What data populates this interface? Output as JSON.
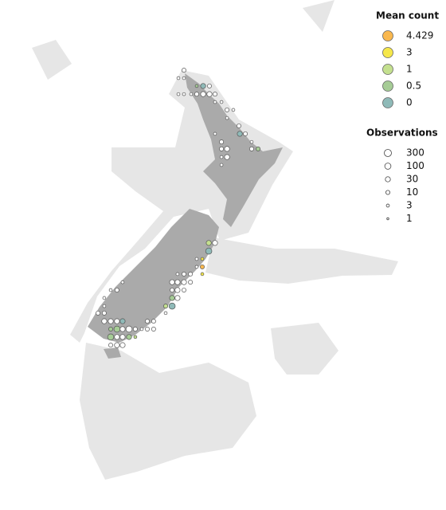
{
  "legend": {
    "mean_title": "Mean count",
    "mean_items": [
      {
        "value": 4.429,
        "color": "#f9b84f"
      },
      {
        "value": 3,
        "color": "#f5e74a"
      },
      {
        "value": 1,
        "color": "#c4e08f"
      },
      {
        "value": 0.5,
        "color": "#a6cc96"
      },
      {
        "value": 0,
        "color": "#8fbab8"
      }
    ],
    "obs_title": "Observations",
    "obs_items": [
      300,
      100,
      30,
      10,
      3,
      1
    ]
  },
  "points": [
    {
      "lon": 172.7,
      "lat": -34.51,
      "mean": null,
      "obs": 10
    },
    {
      "lon": 172.38,
      "lat": -34.86,
      "mean": null,
      "obs": 3
    },
    {
      "lon": 172.7,
      "lat": -34.86,
      "mean": null,
      "obs": 3
    },
    {
      "lon": 173.43,
      "lat": -35.21,
      "mean": 0.5,
      "obs": 3
    },
    {
      "lon": 173.8,
      "lat": -35.21,
      "mean": 0,
      "obs": 30
    },
    {
      "lon": 174.16,
      "lat": -35.21,
      "mean": null,
      "obs": 10
    },
    {
      "lon": 172.38,
      "lat": -35.57,
      "mean": null,
      "obs": 3
    },
    {
      "lon": 172.7,
      "lat": -35.57,
      "mean": null,
      "obs": 3
    },
    {
      "lon": 173.11,
      "lat": -35.57,
      "mean": null,
      "obs": 3
    },
    {
      "lon": 173.43,
      "lat": -35.57,
      "mean": null,
      "obs": 10
    },
    {
      "lon": 173.8,
      "lat": -35.57,
      "mean": null,
      "obs": 30
    },
    {
      "lon": 174.16,
      "lat": -35.57,
      "mean": null,
      "obs": 30
    },
    {
      "lon": 174.48,
      "lat": -35.57,
      "mean": null,
      "obs": 10
    },
    {
      "lon": 174.48,
      "lat": -35.92,
      "mean": null,
      "obs": 3
    },
    {
      "lon": 174.85,
      "lat": -35.92,
      "mean": null,
      "obs": 3
    },
    {
      "lon": 175.17,
      "lat": -36.27,
      "mean": null,
      "obs": 10
    },
    {
      "lon": 175.53,
      "lat": -36.27,
      "mean": null,
      "obs": 3
    },
    {
      "lon": 175.17,
      "lat": -36.63,
      "mean": null,
      "obs": 3
    },
    {
      "lon": 175.85,
      "lat": -36.98,
      "mean": null,
      "obs": 10
    },
    {
      "lon": 174.48,
      "lat": -37.33,
      "mean": null,
      "obs": 3
    },
    {
      "lon": 175.9,
      "lat": -37.33,
      "mean": 0,
      "obs": 30
    },
    {
      "lon": 176.22,
      "lat": -37.33,
      "mean": null,
      "obs": 10
    },
    {
      "lon": 176.58,
      "lat": -37.69,
      "mean": null,
      "obs": 3
    },
    {
      "lon": 174.85,
      "lat": -37.69,
      "mean": null,
      "obs": 10
    },
    {
      "lon": 176.58,
      "lat": -38.0,
      "mean": null,
      "obs": 10
    },
    {
      "lon": 176.95,
      "lat": -38.0,
      "mean": 0.5,
      "obs": 10
    },
    {
      "lon": 174.85,
      "lat": -38.0,
      "mean": null,
      "obs": 10
    },
    {
      "lon": 175.17,
      "lat": -38.0,
      "mean": null,
      "obs": 30
    },
    {
      "lon": 174.85,
      "lat": -38.36,
      "mean": null,
      "obs": 3
    },
    {
      "lon": 175.17,
      "lat": -38.36,
      "mean": null,
      "obs": 30
    },
    {
      "lon": 174.85,
      "lat": -38.71,
      "mean": null,
      "obs": 3
    },
    {
      "lon": 174.12,
      "lat": -42.17,
      "mean": 1,
      "obs": 30
    },
    {
      "lon": 174.48,
      "lat": -42.17,
      "mean": null,
      "obs": 30
    },
    {
      "lon": 174.12,
      "lat": -42.53,
      "mean": 0,
      "obs": 100
    },
    {
      "lon": 173.75,
      "lat": -42.88,
      "mean": 3,
      "obs": 3
    },
    {
      "lon": 173.43,
      "lat": -42.88,
      "mean": null,
      "obs": 3
    },
    {
      "lon": 173.75,
      "lat": -43.23,
      "mean": 4.429,
      "obs": 10
    },
    {
      "lon": 173.43,
      "lat": -43.23,
      "mean": null,
      "obs": 3
    },
    {
      "lon": 172.33,
      "lat": -43.55,
      "mean": null,
      "obs": 3
    },
    {
      "lon": 172.7,
      "lat": -43.55,
      "mean": null,
      "obs": 10
    },
    {
      "lon": 173.07,
      "lat": -43.55,
      "mean": null,
      "obs": 10
    },
    {
      "lon": 173.75,
      "lat": -43.55,
      "mean": 3,
      "obs": 3
    },
    {
      "lon": 169.18,
      "lat": -43.91,
      "mean": null,
      "obs": 3
    },
    {
      "lon": 172.02,
      "lat": -43.91,
      "mean": null,
      "obs": 30
    },
    {
      "lon": 172.33,
      "lat": -43.91,
      "mean": null,
      "obs": 30
    },
    {
      "lon": 172.7,
      "lat": -43.91,
      "mean": null,
      "obs": 30
    },
    {
      "lon": 173.07,
      "lat": -43.91,
      "mean": null,
      "obs": 10
    },
    {
      "lon": 168.5,
      "lat": -44.26,
      "mean": null,
      "obs": 3
    },
    {
      "lon": 168.86,
      "lat": -44.26,
      "mean": null,
      "obs": 10
    },
    {
      "lon": 172.02,
      "lat": -44.26,
      "mean": null,
      "obs": 10
    },
    {
      "lon": 172.33,
      "lat": -44.26,
      "mean": null,
      "obs": 30
    },
    {
      "lon": 172.7,
      "lat": -44.26,
      "mean": null,
      "obs": 10
    },
    {
      "lon": 168.13,
      "lat": -44.61,
      "mean": null,
      "obs": 3
    },
    {
      "lon": 172.02,
      "lat": -44.61,
      "mean": 0.5,
      "obs": 30
    },
    {
      "lon": 172.33,
      "lat": -44.61,
      "mean": null,
      "obs": 30
    },
    {
      "lon": 168.13,
      "lat": -44.97,
      "mean": null,
      "obs": 3
    },
    {
      "lon": 171.65,
      "lat": -44.97,
      "mean": 1,
      "obs": 10
    },
    {
      "lon": 172.02,
      "lat": -44.97,
      "mean": 0,
      "obs": 100
    },
    {
      "lon": 167.77,
      "lat": -45.28,
      "mean": null,
      "obs": 10
    },
    {
      "lon": 168.13,
      "lat": -45.28,
      "mean": null,
      "obs": 10
    },
    {
      "lon": 171.65,
      "lat": -45.28,
      "mean": null,
      "obs": 3
    },
    {
      "lon": 168.13,
      "lat": -45.64,
      "mean": null,
      "obs": 30
    },
    {
      "lon": 168.5,
      "lat": -45.64,
      "mean": null,
      "obs": 30
    },
    {
      "lon": 168.86,
      "lat": -45.64,
      "mean": null,
      "obs": 30
    },
    {
      "lon": 169.18,
      "lat": -45.64,
      "mean": 0,
      "obs": 30
    },
    {
      "lon": 170.6,
      "lat": -45.64,
      "mean": null,
      "obs": 10
    },
    {
      "lon": 170.96,
      "lat": -45.64,
      "mean": null,
      "obs": 10
    },
    {
      "lon": 168.5,
      "lat": -45.99,
      "mean": 0.5,
      "obs": 10
    },
    {
      "lon": 168.86,
      "lat": -45.99,
      "mean": 0.5,
      "obs": 100
    },
    {
      "lon": 169.18,
      "lat": -45.99,
      "mean": null,
      "obs": 30
    },
    {
      "lon": 169.55,
      "lat": -45.99,
      "mean": null,
      "obs": 100
    },
    {
      "lon": 169.91,
      "lat": -45.99,
      "mean": null,
      "obs": 10
    },
    {
      "lon": 170.28,
      "lat": -45.99,
      "mean": null,
      "obs": 3
    },
    {
      "lon": 170.6,
      "lat": -45.99,
      "mean": null,
      "obs": 10
    },
    {
      "lon": 170.96,
      "lat": -45.99,
      "mean": null,
      "obs": 10
    },
    {
      "lon": 168.5,
      "lat": -46.34,
      "mean": 0.5,
      "obs": 100
    },
    {
      "lon": 168.86,
      "lat": -46.34,
      "mean": null,
      "obs": 30
    },
    {
      "lon": 169.18,
      "lat": -46.34,
      "mean": null,
      "obs": 30
    },
    {
      "lon": 169.55,
      "lat": -46.34,
      "mean": 0.5,
      "obs": 30
    },
    {
      "lon": 169.91,
      "lat": -46.34,
      "mean": 1,
      "obs": 3
    },
    {
      "lon": 168.5,
      "lat": -46.7,
      "mean": null,
      "obs": 10
    },
    {
      "lon": 168.86,
      "lat": -46.7,
      "mean": null,
      "obs": 30
    },
    {
      "lon": 169.18,
      "lat": -46.7,
      "mean": null,
      "obs": 30
    }
  ]
}
